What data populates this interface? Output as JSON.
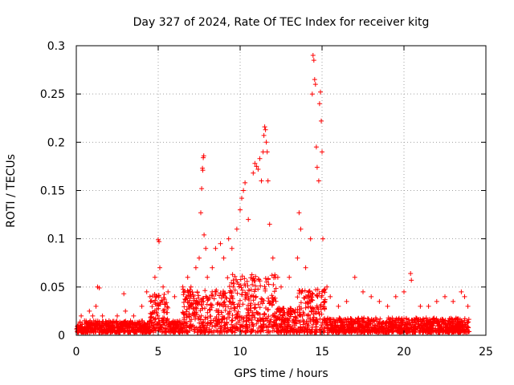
{
  "chart_data": {
    "type": "scatter",
    "title": "Day 327 of 2024, Rate Of TEC Index for receiver kitg",
    "xlabel": "GPS time / hours",
    "ylabel": "ROTI / TECUs",
    "xlim": [
      0,
      25
    ],
    "ylim": [
      0,
      0.3
    ],
    "x_ticks": [
      0,
      5,
      10,
      15,
      20,
      25
    ],
    "x_tick_labels": [
      "0",
      "5",
      "10",
      "15",
      "20",
      "25"
    ],
    "y_ticks": [
      0,
      0.05,
      0.1,
      0.15,
      0.2,
      0.25,
      0.3
    ],
    "y_tick_labels": [
      "0",
      "0.05",
      "0.1",
      "0.15",
      "0.2",
      "0.25",
      "0.3"
    ],
    "grid": true,
    "marker": "+",
    "color": "#ff0000",
    "series": [
      {
        "name": "ROTI",
        "points": [
          [
            0.1,
            0.01
          ],
          [
            0.3,
            0.02
          ],
          [
            0.5,
            0.015
          ],
          [
            0.8,
            0.025
          ],
          [
            1.0,
            0.02
          ],
          [
            1.2,
            0.03
          ],
          [
            1.3,
            0.05
          ],
          [
            1.4,
            0.049
          ],
          [
            1.6,
            0.02
          ],
          [
            2.0,
            0.015
          ],
          [
            2.5,
            0.02
          ],
          [
            2.9,
            0.043
          ],
          [
            3.0,
            0.025
          ],
          [
            3.5,
            0.02
          ],
          [
            4.0,
            0.03
          ],
          [
            4.3,
            0.045
          ],
          [
            4.5,
            0.04
          ],
          [
            4.8,
            0.06
          ],
          [
            5.0,
            0.099
          ],
          [
            5.05,
            0.097
          ],
          [
            5.1,
            0.07
          ],
          [
            5.3,
            0.05
          ],
          [
            5.6,
            0.045
          ],
          [
            6.0,
            0.04
          ],
          [
            6.5,
            0.05
          ],
          [
            6.8,
            0.06
          ],
          [
            7.0,
            0.05
          ],
          [
            7.3,
            0.07
          ],
          [
            7.5,
            0.08
          ],
          [
            7.6,
            0.127
          ],
          [
            7.65,
            0.152
          ],
          [
            7.7,
            0.173
          ],
          [
            7.72,
            0.171
          ],
          [
            7.75,
            0.184
          ],
          [
            7.78,
            0.186
          ],
          [
            7.8,
            0.104
          ],
          [
            7.9,
            0.09
          ],
          [
            8.0,
            0.06
          ],
          [
            8.3,
            0.07
          ],
          [
            8.5,
            0.09
          ],
          [
            8.8,
            0.095
          ],
          [
            9.0,
            0.08
          ],
          [
            9.3,
            0.1
          ],
          [
            9.5,
            0.09
          ],
          [
            9.8,
            0.11
          ],
          [
            10.0,
            0.13
          ],
          [
            10.1,
            0.142
          ],
          [
            10.2,
            0.15
          ],
          [
            10.3,
            0.158
          ],
          [
            10.5,
            0.12
          ],
          [
            10.8,
            0.168
          ],
          [
            10.9,
            0.178
          ],
          [
            11.0,
            0.175
          ],
          [
            11.1,
            0.172
          ],
          [
            11.2,
            0.183
          ],
          [
            11.3,
            0.16
          ],
          [
            11.4,
            0.19
          ],
          [
            11.45,
            0.207
          ],
          [
            11.5,
            0.216
          ],
          [
            11.55,
            0.213
          ],
          [
            11.6,
            0.2
          ],
          [
            11.65,
            0.19
          ],
          [
            11.7,
            0.16
          ],
          [
            11.8,
            0.115
          ],
          [
            12.0,
            0.08
          ],
          [
            12.3,
            0.06
          ],
          [
            12.5,
            0.05
          ],
          [
            13.0,
            0.06
          ],
          [
            13.5,
            0.08
          ],
          [
            13.6,
            0.127
          ],
          [
            13.7,
            0.11
          ],
          [
            14.0,
            0.07
          ],
          [
            14.3,
            0.1
          ],
          [
            14.4,
            0.25
          ],
          [
            14.45,
            0.29
          ],
          [
            14.5,
            0.285
          ],
          [
            14.55,
            0.265
          ],
          [
            14.6,
            0.26
          ],
          [
            14.65,
            0.195
          ],
          [
            14.7,
            0.174
          ],
          [
            14.8,
            0.16
          ],
          [
            14.85,
            0.24
          ],
          [
            14.9,
            0.252
          ],
          [
            14.95,
            0.222
          ],
          [
            15.0,
            0.19
          ],
          [
            15.05,
            0.1
          ],
          [
            15.3,
            0.05
          ],
          [
            15.5,
            0.04
          ],
          [
            16.0,
            0.03
          ],
          [
            16.5,
            0.035
          ],
          [
            17.0,
            0.06
          ],
          [
            17.5,
            0.045
          ],
          [
            18.0,
            0.04
          ],
          [
            18.5,
            0.035
          ],
          [
            19.0,
            0.03
          ],
          [
            19.5,
            0.04
          ],
          [
            20.0,
            0.045
          ],
          [
            20.4,
            0.064
          ],
          [
            20.45,
            0.057
          ],
          [
            21.0,
            0.03
          ],
          [
            21.5,
            0.03
          ],
          [
            22.0,
            0.035
          ],
          [
            22.5,
            0.04
          ],
          [
            23.0,
            0.035
          ],
          [
            23.5,
            0.045
          ],
          [
            23.7,
            0.04
          ],
          [
            23.9,
            0.03
          ]
        ]
      }
    ]
  }
}
